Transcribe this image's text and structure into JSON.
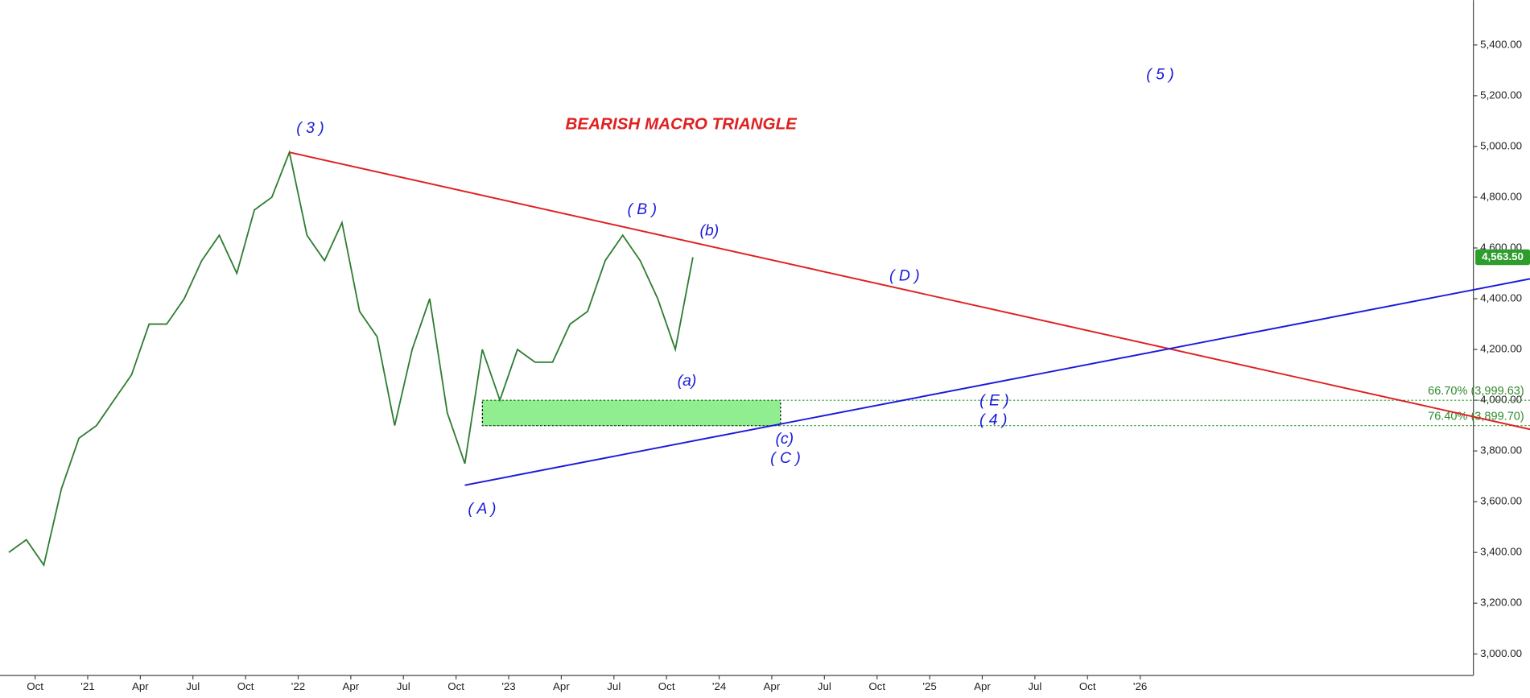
{
  "chart_data": {
    "type": "line",
    "title": "BEARISH MACRO TRIANGLE",
    "x": [
      "2020-08",
      "2020-09",
      "2020-10",
      "2020-11",
      "2020-12",
      "2021-01",
      "2021-02",
      "2021-03",
      "2021-04",
      "2021-05",
      "2021-06",
      "2021-07",
      "2021-08",
      "2021-09",
      "2021-10",
      "2021-11",
      "2021-12",
      "2022-01",
      "2022-02",
      "2022-03",
      "2022-04",
      "2022-05",
      "2022-06",
      "2022-07",
      "2022-08",
      "2022-09",
      "2022-10",
      "2022-11",
      "2022-12",
      "2023-01",
      "2023-02",
      "2023-03",
      "2023-04",
      "2023-05",
      "2023-06",
      "2023-07",
      "2023-08",
      "2023-09",
      "2023-10",
      "2023-11"
    ],
    "series": [
      {
        "color": "#2e7d32",
        "values": [
          3400,
          3450,
          3350,
          3650,
          3850,
          3900,
          4000,
          4100,
          4300,
          4300,
          4400,
          4550,
          4650,
          4500,
          4750,
          4800,
          4977,
          4650,
          4550,
          4700,
          4350,
          4250,
          3900,
          4200,
          4400,
          3950,
          3750,
          4200,
          4000,
          4200,
          4150,
          4150,
          4300,
          4350,
          4550,
          4650,
          4550,
          4400,
          4200,
          4563.5
        ]
      }
    ],
    "last_price": 4563.5,
    "last_price_label": "4,563.50",
    "xlim": [
      "2020-08",
      "2027-08"
    ],
    "xticks": [
      {
        "value": "2020-10",
        "label": "Oct"
      },
      {
        "value": "2021-01",
        "label": "'21"
      },
      {
        "value": "2021-04",
        "label": "Apr"
      },
      {
        "value": "2021-07",
        "label": "Jul"
      },
      {
        "value": "2021-10",
        "label": "Oct"
      },
      {
        "value": "2022-01",
        "label": "'22"
      },
      {
        "value": "2022-04",
        "label": "Apr"
      },
      {
        "value": "2022-07",
        "label": "Jul"
      },
      {
        "value": "2022-10",
        "label": "Oct"
      },
      {
        "value": "2023-01",
        "label": "'23"
      },
      {
        "value": "2023-04",
        "label": "Apr"
      },
      {
        "value": "2023-07",
        "label": "Jul"
      },
      {
        "value": "2023-10",
        "label": "Oct"
      },
      {
        "value": "2024-01",
        "label": "'24"
      },
      {
        "value": "2024-04",
        "label": "Apr"
      },
      {
        "value": "2024-07",
        "label": "Jul"
      },
      {
        "value": "2024-10",
        "label": "Oct"
      },
      {
        "value": "2025-01",
        "label": "'25"
      },
      {
        "value": "2025-04",
        "label": "Apr"
      },
      {
        "value": "2025-07",
        "label": "Jul"
      },
      {
        "value": "2025-10",
        "label": "Oct"
      },
      {
        "value": "2026-01",
        "label": "'26"
      }
    ],
    "ylim": [
      2915,
      5577
    ],
    "yticks": [
      {
        "value": 3000,
        "label": "3,000.00"
      },
      {
        "value": 3200,
        "label": "3,200.00"
      },
      {
        "value": 3400,
        "label": "3,400.00"
      },
      {
        "value": 3600,
        "label": "3,600.00"
      },
      {
        "value": 3800,
        "label": "3,800.00"
      },
      {
        "value": 4000,
        "label": "4,000.00"
      },
      {
        "value": 4200,
        "label": "4,200.00"
      },
      {
        "value": 4400,
        "label": "4,400.00"
      },
      {
        "value": 4600,
        "label": "4,600.00"
      },
      {
        "value": 4800,
        "label": "4,800.00"
      },
      {
        "value": 5000,
        "label": "5,000.00"
      },
      {
        "value": 5200,
        "label": "5,200.00"
      },
      {
        "value": 5400,
        "label": "5,400.00"
      }
    ],
    "trendlines": [
      {
        "color": "#e02020",
        "from": [
          "2021-12",
          4977
        ],
        "to": [
          "2027-08",
          3935
        ]
      },
      {
        "color": "#1a1adb",
        "from": [
          "2022-10",
          3665
        ],
        "to": [
          "2027-08",
          4435
        ]
      }
    ],
    "levels": [
      {
        "value": 3999.63,
        "label": "66.70% (3,999.63)"
      },
      {
        "value": 3899.7,
        "label": "76.40% (3,899.70)"
      }
    ],
    "zone": {
      "x": [
        "2022-11",
        "2024-04"
      ],
      "y": [
        3899.7,
        3999.63
      ],
      "color": "#90ee90"
    },
    "wave_labels": [
      "( 3 )",
      "( B )",
      "(b)",
      "( D )",
      "( 5 )",
      "(a)",
      "( E )",
      "( 4 )",
      "(c)",
      "( C )",
      "( A )"
    ]
  }
}
